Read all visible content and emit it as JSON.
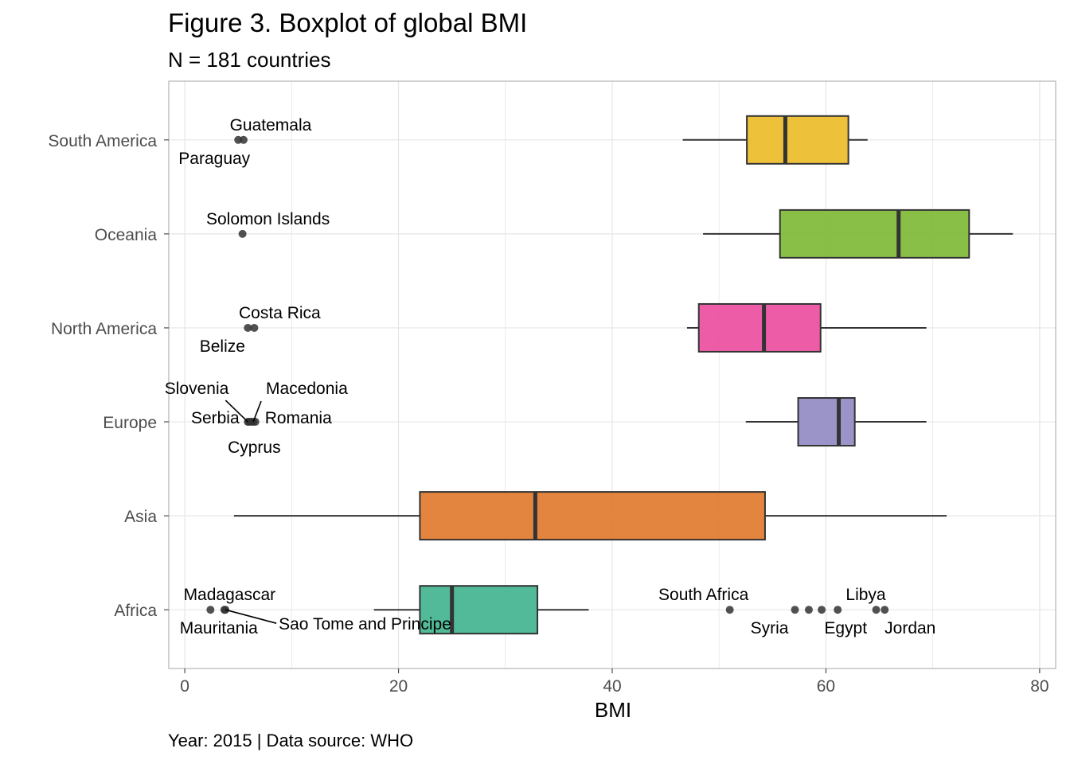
{
  "chart_data": {
    "type": "boxplot",
    "title": "Figure 3. Boxplot of global BMI",
    "subtitle": "N = 181 countries",
    "caption": "Year: 2015 | Data source: WHO",
    "xlabel": "BMI",
    "ylabel": "",
    "xlim": [
      -1.5,
      81.5
    ],
    "x_ticks": [
      0,
      20,
      40,
      60,
      80
    ],
    "grid": true,
    "orientation": "horizontal",
    "categories": [
      "Africa",
      "Asia",
      "Europe",
      "North America",
      "Oceania",
      "South America"
    ],
    "series": [
      {
        "name": "Africa",
        "color": "#3FB28D",
        "whisker_low": 17.7,
        "q1": 22.0,
        "median": 25.0,
        "q3": 33.0,
        "whisker_high": 37.8,
        "outliers": [
          {
            "x": 2.4,
            "label": "Madagascar"
          },
          {
            "x": 3.7,
            "label": "Mauritania"
          },
          {
            "x": 3.8,
            "label": "Sao Tome and Principe"
          },
          {
            "x": 51.0,
            "label": "South Africa"
          },
          {
            "x": 57.1,
            "label": "Syria"
          },
          {
            "x": 58.4,
            "label": ""
          },
          {
            "x": 59.6,
            "label": ""
          },
          {
            "x": 61.1,
            "label": "Egypt"
          },
          {
            "x": 64.7,
            "label": "Libya"
          },
          {
            "x": 65.5,
            "label": "Jordan"
          }
        ]
      },
      {
        "name": "Asia",
        "color": "#E0782A",
        "whisker_low": 4.6,
        "q1": 22.0,
        "median": 32.8,
        "q3": 54.3,
        "whisker_high": 71.3,
        "outliers": []
      },
      {
        "name": "Europe",
        "color": "#8F88C3",
        "whisker_low": 52.5,
        "q1": 57.4,
        "median": 61.2,
        "q3": 62.7,
        "whisker_high": 69.4,
        "outliers": [
          {
            "x": 5.9,
            "label": "Slovenia"
          },
          {
            "x": 6.0,
            "label": "Serbia"
          },
          {
            "x": 6.2,
            "label": "Cyprus"
          },
          {
            "x": 6.4,
            "label": "Macedonia"
          },
          {
            "x": 6.6,
            "label": "Romania"
          }
        ]
      },
      {
        "name": "North America",
        "color": "#EB4A9D",
        "whisker_low": 47.0,
        "q1": 48.1,
        "median": 54.2,
        "q3": 59.5,
        "whisker_high": 69.4,
        "outliers": [
          {
            "x": 5.9,
            "label": "Belize"
          },
          {
            "x": 6.5,
            "label": "Costa Rica"
          }
        ]
      },
      {
        "name": "Oceania",
        "color": "#7CB733",
        "whisker_low": 48.5,
        "q1": 55.7,
        "median": 66.8,
        "q3": 73.4,
        "whisker_high": 77.5,
        "outliers": [
          {
            "x": 5.4,
            "label": "Solomon Islands"
          }
        ]
      },
      {
        "name": "South America",
        "color": "#EBBA25",
        "whisker_low": 46.6,
        "q1": 52.6,
        "median": 56.2,
        "q3": 62.1,
        "whisker_high": 63.9,
        "outliers": [
          {
            "x": 5.0,
            "label": "Paraguay"
          },
          {
            "x": 5.5,
            "label": "Guatemala"
          }
        ]
      }
    ]
  }
}
